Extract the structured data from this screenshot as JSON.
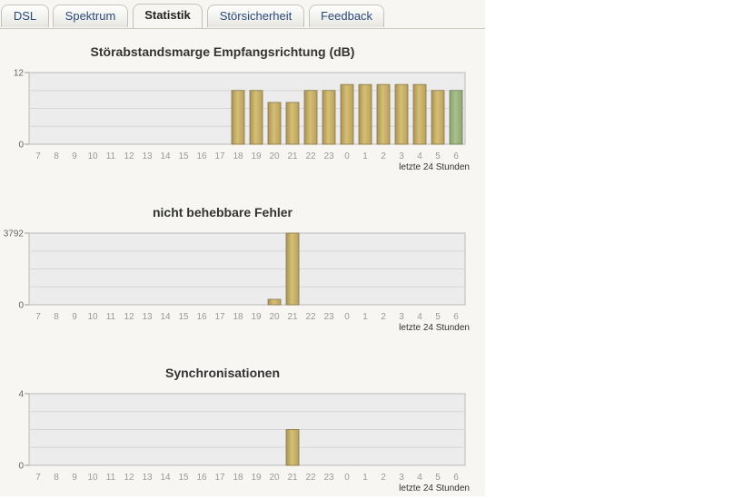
{
  "tabs": [
    {
      "label": "DSL",
      "active": false
    },
    {
      "label": "Spektrum",
      "active": false
    },
    {
      "label": "Statistik",
      "active": true
    },
    {
      "label": "Störsicherheit",
      "active": false
    },
    {
      "label": "Feedback",
      "active": false
    }
  ],
  "colors": {
    "bar": "#d6bf73",
    "bar_highlight": "#a8c08a",
    "plot_background": "#ececec",
    "grid": "#d6d6d6",
    "active_tab_text": "#222222",
    "tab_text": "#2b4a78"
  },
  "chart_data": [
    {
      "type": "bar",
      "title": "Störabstandsmarge Empfangsrichtung (dB)",
      "xlabel": "letzte 24 Stunden",
      "ylabel": "",
      "categories": [
        "7",
        "8",
        "9",
        "10",
        "11",
        "12",
        "13",
        "14",
        "15",
        "16",
        "17",
        "18",
        "19",
        "20",
        "21",
        "22",
        "23",
        "0",
        "1",
        "2",
        "3",
        "4",
        "5",
        "6"
      ],
      "values": [
        0,
        0,
        0,
        0,
        0,
        0,
        0,
        0,
        0,
        0,
        0,
        9,
        9,
        7,
        7,
        9,
        9,
        10,
        10,
        10,
        10,
        10,
        9,
        9
      ],
      "highlight_index": 23,
      "ylim": [
        0,
        12
      ],
      "yticks": [
        "0",
        "12"
      ],
      "grid": true
    },
    {
      "type": "bar",
      "title": "nicht behebbare Fehler",
      "xlabel": "letzte 24 Stunden",
      "ylabel": "",
      "categories": [
        "7",
        "8",
        "9",
        "10",
        "11",
        "12",
        "13",
        "14",
        "15",
        "16",
        "17",
        "18",
        "19",
        "20",
        "21",
        "22",
        "23",
        "0",
        "1",
        "2",
        "3",
        "4",
        "5",
        "6"
      ],
      "values": [
        0,
        0,
        0,
        0,
        0,
        0,
        0,
        0,
        0,
        0,
        0,
        0,
        0,
        290,
        3792,
        0,
        0,
        0,
        0,
        0,
        0,
        0,
        0,
        0
      ],
      "highlight_index": null,
      "ylim": [
        0,
        3792
      ],
      "yticks": [
        "0",
        "3792"
      ],
      "grid": true
    },
    {
      "type": "bar",
      "title": "Synchronisationen",
      "xlabel": "letzte 24 Stunden",
      "ylabel": "",
      "categories": [
        "7",
        "8",
        "9",
        "10",
        "11",
        "12",
        "13",
        "14",
        "15",
        "16",
        "17",
        "18",
        "19",
        "20",
        "21",
        "22",
        "23",
        "0",
        "1",
        "2",
        "3",
        "4",
        "5",
        "6"
      ],
      "values": [
        0,
        0,
        0,
        0,
        0,
        0,
        0,
        0,
        0,
        0,
        0,
        0,
        0,
        0,
        2,
        0,
        0,
        0,
        0,
        0,
        0,
        0,
        0,
        0
      ],
      "highlight_index": null,
      "ylim": [
        0,
        4
      ],
      "yticks": [
        "0",
        "4"
      ],
      "grid": true
    }
  ]
}
